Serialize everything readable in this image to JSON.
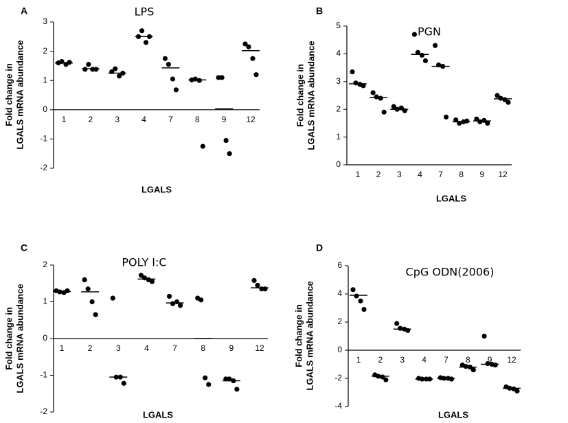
{
  "chart_data": [
    {
      "type": "dot",
      "panel": "A",
      "title": "LPS",
      "xlabel": "LGALS",
      "ylabel": [
        "Fold change in",
        "LGALS mRNA abundance"
      ],
      "categories": [
        "1",
        "2",
        "3",
        "4",
        "7",
        "8",
        "9",
        "12"
      ],
      "points": [
        [
          1.6,
          1.65,
          1.55,
          1.62
        ],
        [
          1.38,
          1.55,
          1.38,
          1.38
        ],
        [
          1.3,
          1.4,
          1.15,
          1.25
        ],
        [
          2.5,
          2.7,
          2.3,
          2.5
        ],
        [
          1.75,
          1.55,
          1.05,
          0.68
        ],
        [
          1.02,
          1.05,
          1.0,
          -1.25
        ],
        [
          1.1,
          1.1,
          -1.05,
          -1.5
        ],
        [
          2.25,
          2.15,
          1.75,
          1.2
        ]
      ],
      "means": [
        1.6,
        1.4,
        1.25,
        2.5,
        1.43,
        1.02,
        0.03,
        2.02
      ],
      "ylim": [
        -2,
        3
      ],
      "yticks": [
        -2,
        -1,
        0,
        1,
        2,
        3
      ],
      "color": "#000000"
    },
    {
      "type": "dot",
      "panel": "B",
      "title": "PGN",
      "xlabel": "LGALS",
      "ylabel": [
        "Fold change in",
        "LGALS mRNA abundance"
      ],
      "categories": [
        "1",
        "2",
        "3",
        "4",
        "7",
        "8",
        "9",
        "12"
      ],
      "points": [
        [
          3.35,
          2.95,
          2.9,
          2.85
        ],
        [
          2.6,
          2.45,
          2.4,
          1.9
        ],
        [
          2.1,
          2.0,
          2.05,
          1.95
        ],
        [
          4.7,
          4.05,
          3.95,
          3.75
        ],
        [
          4.3,
          3.6,
          3.55,
          1.72
        ],
        [
          1.62,
          1.5,
          1.55,
          1.58
        ],
        [
          1.65,
          1.55,
          1.6,
          1.5
        ],
        [
          2.5,
          2.4,
          2.35,
          2.25
        ]
      ],
      "means": [
        2.92,
        2.42,
        2.0,
        3.98,
        3.55,
        1.55,
        1.58,
        2.38
      ],
      "ylim": [
        0,
        5
      ],
      "yticks": [
        0,
        1,
        2,
        3,
        4,
        5
      ],
      "color": "#000000"
    },
    {
      "type": "dot",
      "panel": "C",
      "title": "POLY I:C",
      "xlabel": "LGALS",
      "ylabel": [
        "Fold change in",
        "LGALS mRNA abundance"
      ],
      "categories": [
        "1",
        "2",
        "3",
        "4",
        "7",
        "8",
        "9",
        "12"
      ],
      "points": [
        [
          1.3,
          1.27,
          1.25,
          1.3
        ],
        [
          1.6,
          1.35,
          1.0,
          0.65
        ],
        [
          1.1,
          -1.05,
          -1.05,
          -1.22
        ],
        [
          1.72,
          1.65,
          1.6,
          1.55
        ],
        [
          1.15,
          0.95,
          1.0,
          0.9
        ],
        [
          1.1,
          1.05,
          -1.07,
          -1.25
        ],
        [
          -1.1,
          -1.1,
          -1.15,
          -1.38
        ],
        [
          1.58,
          1.45,
          1.35,
          1.35
        ]
      ],
      "means": [
        1.28,
        1.27,
        -1.05,
        1.62,
        0.97,
        0,
        -1.15,
        1.38
      ],
      "ylim": [
        -2,
        2
      ],
      "yticks": [
        -2,
        -1,
        0,
        1,
        2
      ],
      "color": "#000000"
    },
    {
      "type": "dot",
      "panel": "D",
      "title": "CpG ODN(2006)",
      "xlabel": "LGALS",
      "ylabel": [
        "Fold change in",
        "LGALS mRNA abundance"
      ],
      "categories": [
        "1",
        "2",
        "3",
        "4",
        "7",
        "8",
        "9",
        "12"
      ],
      "points": [
        [
          4.3,
          3.85,
          3.5,
          2.9
        ],
        [
          -1.75,
          -1.85,
          -1.9,
          -2.1
        ],
        [
          1.9,
          1.55,
          1.5,
          1.4
        ],
        [
          -2.0,
          -2.05,
          -2.05,
          -2.05
        ],
        [
          -1.95,
          -2.0,
          -2.0,
          -2.05
        ],
        [
          -1.05,
          -1.15,
          -1.2,
          -1.4
        ],
        [
          1.0,
          -0.95,
          -1.0,
          -1.05
        ],
        [
          -2.6,
          -2.7,
          -2.75,
          -2.9
        ]
      ],
      "means": [
        3.9,
        -1.85,
        1.5,
        -2.05,
        -2.0,
        -1.2,
        -1.0,
        -2.7
      ],
      "ylim": [
        -4,
        6
      ],
      "yticks": [
        -4,
        -2,
        0,
        2,
        4,
        6
      ],
      "color": "#000000"
    }
  ]
}
